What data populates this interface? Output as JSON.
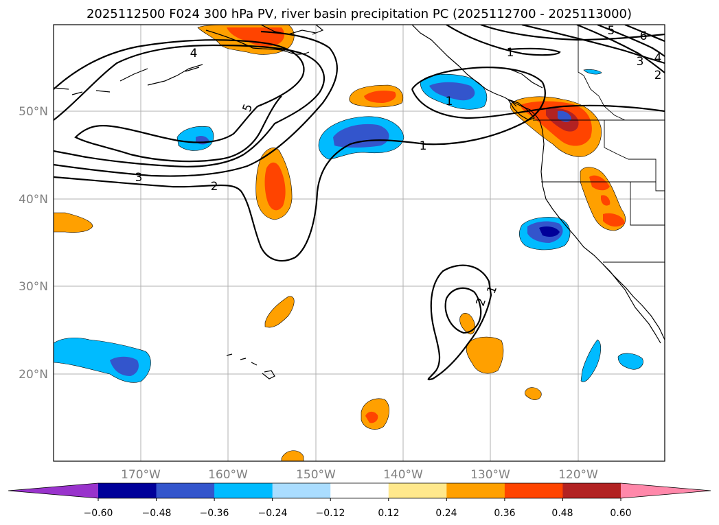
{
  "title": "2025112500 F024 300 hPa PV, river basin precipitation PC (2025112700 - 2025113000)",
  "x_ticks": [
    "170°W",
    "160°W",
    "150°W",
    "140°W",
    "130°W",
    "120°W"
  ],
  "y_ticks": [
    "50°N",
    "40°N",
    "30°N",
    "20°N"
  ],
  "contour_labels": [
    "4",
    "5",
    "3",
    "2",
    "1",
    "1",
    "5",
    "6",
    "4",
    "3",
    "2",
    "1",
    "2",
    "1"
  ],
  "colorbar": {
    "ticks": [
      "−0.60",
      "−0.48",
      "−0.36",
      "−0.24",
      "−0.12",
      "0.12",
      "0.24",
      "0.36",
      "0.48",
      "0.60"
    ],
    "colors": [
      "#9933cc",
      "#000099",
      "#3355cc",
      "#00bbff",
      "#aaddff",
      "#ffffff",
      "#ffe88c",
      "#ffa000",
      "#ff4400",
      "#b22222",
      "#ff88aa"
    ]
  }
}
